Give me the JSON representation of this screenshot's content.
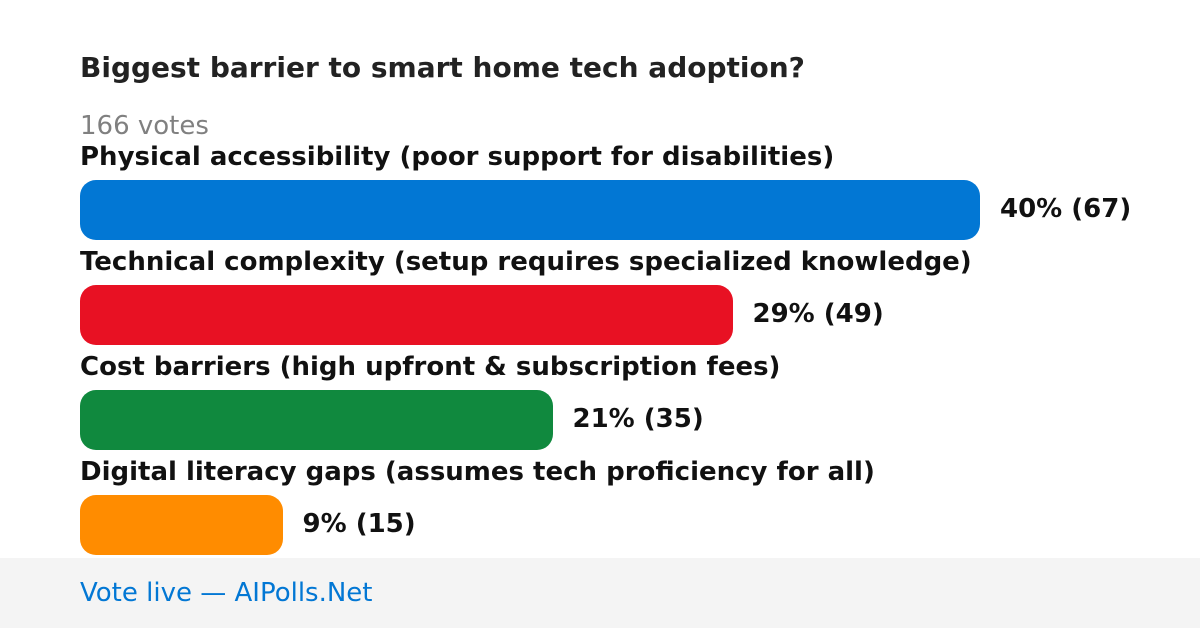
{
  "poll": {
    "title": "Biggest barrier to smart home tech adoption?",
    "votes_label": "166 votes"
  },
  "chart_data": {
    "type": "bar",
    "orientation": "horizontal",
    "title": "Biggest barrier to smart home tech adoption?",
    "total_votes": 166,
    "categories": [
      "Physical accessibility (poor support for disabilities)",
      "Technical complexity (setup requires specialized knowledge)",
      "Cost barriers (high upfront & subscription fees)",
      "Digital literacy gaps (assumes tech proficiency for all)"
    ],
    "percent": [
      40,
      29,
      21,
      9
    ],
    "votes": [
      67,
      49,
      35,
      15
    ],
    "value_labels": [
      "40% (67)",
      "29% (49)",
      "21% (35)",
      "9% (15)"
    ],
    "colors": [
      "#0277d4",
      "#e81123",
      "#10893e",
      "#ff8c00"
    ]
  },
  "footer": {
    "link_label": "Vote live — AIPolls.Net"
  }
}
